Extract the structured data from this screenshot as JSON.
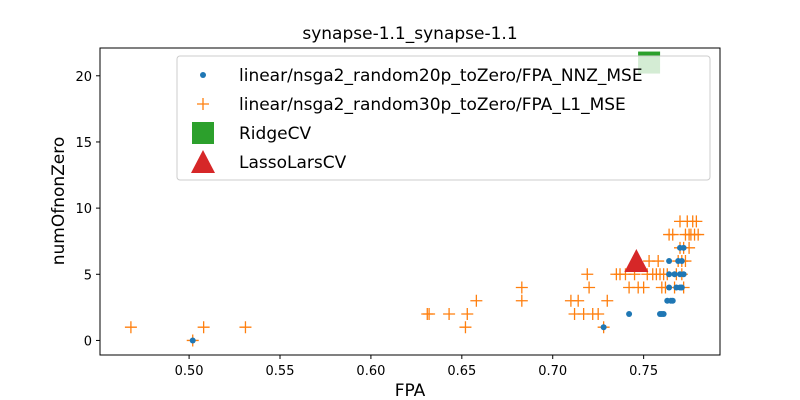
{
  "chart_data": {
    "type": "scatter",
    "title": "synapse-1.1_synapse-1.1",
    "xlabel": "FPA",
    "ylabel": "numOfnonZero",
    "xlim": [
      0.451,
      0.792
    ],
    "ylim": [
      -1.1,
      22.1
    ],
    "xticks": [
      0.5,
      0.55,
      0.6,
      0.65,
      0.7,
      0.75
    ],
    "yticks": [
      0,
      5,
      10,
      15,
      20
    ],
    "xtick_labels": [
      "0.50",
      "0.55",
      "0.60",
      "0.65",
      "0.70",
      "0.75"
    ],
    "ytick_labels": [
      "0",
      "5",
      "10",
      "15",
      "20"
    ],
    "grid": false,
    "legend_position": "upper-right",
    "series": [
      {
        "name": "linear/nsga2_random20p_toZero/FPA_NNZ_MSE",
        "marker": "circle",
        "color": "#1f77b4",
        "points": [
          [
            0.502,
            0
          ],
          [
            0.728,
            1
          ],
          [
            0.742,
            2
          ],
          [
            0.759,
            2
          ],
          [
            0.76,
            2
          ],
          [
            0.761,
            2
          ],
          [
            0.763,
            3
          ],
          [
            0.765,
            3
          ],
          [
            0.766,
            3
          ],
          [
            0.764,
            4
          ],
          [
            0.768,
            4
          ],
          [
            0.77,
            4
          ],
          [
            0.771,
            4
          ],
          [
            0.764,
            5
          ],
          [
            0.767,
            5
          ],
          [
            0.77,
            5
          ],
          [
            0.772,
            5
          ],
          [
            0.764,
            6
          ],
          [
            0.769,
            6
          ],
          [
            0.771,
            6
          ],
          [
            0.77,
            7
          ],
          [
            0.772,
            7
          ]
        ]
      },
      {
        "name": "linear/nsga2_random30p_toZero/FPA_L1_MSE",
        "marker": "plus",
        "color": "#ff7f0e",
        "points": [
          [
            0.468,
            1
          ],
          [
            0.502,
            0
          ],
          [
            0.508,
            1
          ],
          [
            0.531,
            1
          ],
          [
            0.631,
            2
          ],
          [
            0.632,
            2
          ],
          [
            0.643,
            2
          ],
          [
            0.652,
            1
          ],
          [
            0.653,
            2
          ],
          [
            0.658,
            3
          ],
          [
            0.683,
            3
          ],
          [
            0.683,
            4
          ],
          [
            0.71,
            3
          ],
          [
            0.712,
            2
          ],
          [
            0.714,
            3
          ],
          [
            0.717,
            2
          ],
          [
            0.719,
            5
          ],
          [
            0.72,
            4
          ],
          [
            0.722,
            2
          ],
          [
            0.725,
            2
          ],
          [
            0.728,
            1
          ],
          [
            0.73,
            3
          ],
          [
            0.735,
            5
          ],
          [
            0.737,
            5
          ],
          [
            0.74,
            5
          ],
          [
            0.742,
            4
          ],
          [
            0.745,
            5
          ],
          [
            0.747,
            4
          ],
          [
            0.75,
            4
          ],
          [
            0.752,
            5
          ],
          [
            0.753,
            6
          ],
          [
            0.755,
            5
          ],
          [
            0.757,
            5
          ],
          [
            0.758,
            6
          ],
          [
            0.759,
            5
          ],
          [
            0.76,
            4
          ],
          [
            0.761,
            5
          ],
          [
            0.762,
            4
          ],
          [
            0.763,
            5
          ],
          [
            0.764,
            8
          ],
          [
            0.766,
            8
          ],
          [
            0.767,
            4
          ],
          [
            0.768,
            5
          ],
          [
            0.769,
            6
          ],
          [
            0.77,
            7
          ],
          [
            0.77,
            9
          ],
          [
            0.771,
            5
          ],
          [
            0.771,
            6
          ],
          [
            0.772,
            4
          ],
          [
            0.772,
            7
          ],
          [
            0.773,
            6
          ],
          [
            0.773,
            8
          ],
          [
            0.774,
            9
          ],
          [
            0.775,
            7
          ],
          [
            0.775,
            8
          ],
          [
            0.776,
            8
          ],
          [
            0.777,
            9
          ],
          [
            0.778,
            8
          ],
          [
            0.779,
            9
          ],
          [
            0.78,
            8
          ]
        ]
      },
      {
        "name": "RidgeCV",
        "marker": "square",
        "color": "#2ca02c",
        "points": [
          [
            0.753,
            21
          ]
        ]
      },
      {
        "name": "LassoLarsCV",
        "marker": "triangle",
        "color": "#d62728",
        "points": [
          [
            0.746,
            6
          ]
        ]
      }
    ]
  }
}
